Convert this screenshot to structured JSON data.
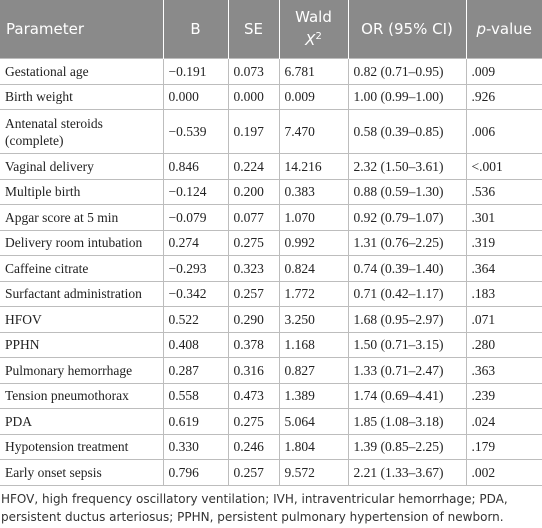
{
  "table": {
    "headers": [
      "Parameter",
      "B",
      "SE",
      {
        "line1": "Wald",
        "symbol": "X",
        "superscript": "2"
      },
      "OR (95% CI)",
      {
        "italic": "p",
        "text": "-value"
      }
    ],
    "rows": [
      [
        "Gestational age",
        "−0.191",
        "0.073",
        "6.781",
        "0.82 (0.71–0.95)",
        ".009"
      ],
      [
        "Birth weight",
        "0.000",
        "0.000",
        "0.009",
        "1.00 (0.99–1.00)",
        ".926"
      ],
      [
        "Antenatal steroids (complete)",
        "−0.539",
        "0.197",
        "7.470",
        "0.58 (0.39–0.85)",
        ".006"
      ],
      [
        "Vaginal delivery",
        "0.846",
        "0.224",
        "14.216",
        "2.32 (1.50–3.61)",
        "<.001"
      ],
      [
        "Multiple birth",
        "−0.124",
        "0.200",
        "0.383",
        "0.88 (0.59–1.30)",
        ".536"
      ],
      [
        "Apgar score at 5 min",
        "−0.079",
        "0.077",
        "1.070",
        "0.92 (0.79–1.07)",
        ".301"
      ],
      [
        "Delivery room intubation",
        "0.274",
        "0.275",
        "0.992",
        "1.31 (0.76–2.25)",
        ".319"
      ],
      [
        "Caffeine citrate",
        "−0.293",
        "0.323",
        "0.824",
        "0.74 (0.39–1.40)",
        ".364"
      ],
      [
        "Surfactant administration",
        "−0.342",
        "0.257",
        "1.772",
        "0.71 (0.42–1.17)",
        ".183"
      ],
      [
        "HFOV",
        "0.522",
        "0.290",
        "3.250",
        "1.68 (0.95–2.97)",
        ".071"
      ],
      [
        "PPHN",
        "0.408",
        "0.378",
        "1.168",
        "1.50 (0.71–3.15)",
        ".280"
      ],
      [
        "Pulmonary hemorrhage",
        "0.287",
        "0.316",
        "0.827",
        "1.33 (0.71–2.47)",
        ".363"
      ],
      [
        "Tension pneumothorax",
        "0.558",
        "0.473",
        "1.389",
        "1.74 (0.69–4.41)",
        ".239"
      ],
      [
        "PDA",
        "0.619",
        "0.275",
        "5.064",
        "1.85 (1.08–3.18)",
        ".024"
      ],
      [
        "Hypotension treatment",
        "0.330",
        "0.246",
        "1.804",
        "1.39 (0.85–2.25)",
        ".179"
      ],
      [
        "Early onset sepsis",
        "0.796",
        "0.257",
        "9.572",
        "2.21 (1.33–3.67)",
        ".002"
      ]
    ]
  },
  "footnote": "HFOV, high frequency oscillatory ventilation; IVH, intraventricular hemorrhage; PDA, persistent ductus arteriosus; PPHN, persistent pulmonary hypertension of newborn."
}
